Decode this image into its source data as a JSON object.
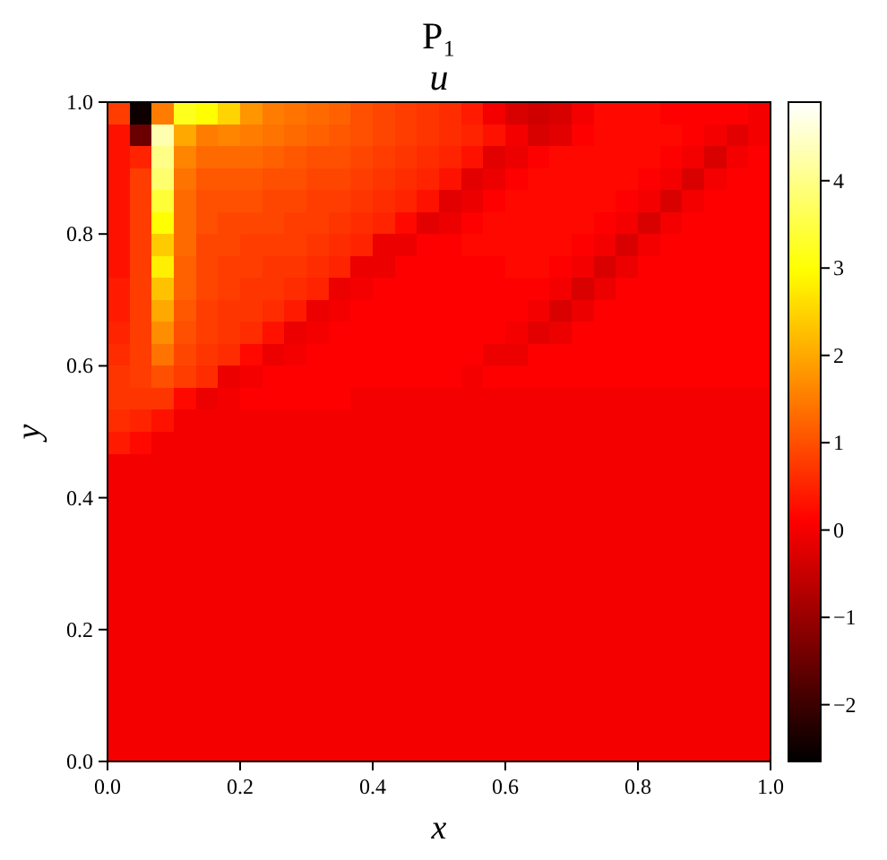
{
  "chart_data": {
    "type": "heatmap",
    "title": "P₁",
    "subtitle": "u",
    "xlabel": "x",
    "ylabel": "y",
    "xlim": [
      0,
      1
    ],
    "ylim": [
      0,
      1
    ],
    "xticks": [
      {
        "value": 0,
        "label": "0.0"
      },
      0.2,
      0.4,
      0.6,
      0.8,
      {
        "value": 1,
        "label": "1.0"
      }
    ],
    "yticks": [
      {
        "value": 0,
        "label": "0.0"
      },
      0.2,
      0.4,
      0.6,
      0.8,
      {
        "value": 1,
        "label": "1.0"
      }
    ],
    "clim": [
      -2.65,
      4.9
    ],
    "cticks": [
      {
        "value": -2,
        "label": "−2"
      },
      {
        "value": -1,
        "label": "−1"
      },
      0,
      1,
      2,
      3,
      4
    ],
    "cells": [
      [
        0.8,
        -2.5,
        1.5,
        3.2,
        3.0,
        2.5,
        1.8,
        1.5,
        1.4,
        1.3,
        1.2,
        1.0,
        0.9,
        0.8,
        0.7,
        0.6,
        0.4,
        0.0,
        -0.3,
        -0.4,
        -0.3,
        0.0,
        0.2,
        0.2,
        0.2,
        0.1,
        0.1,
        0.1,
        0.1,
        0.0
      ],
      [
        0.3,
        -1.5,
        4.3,
        2.0,
        1.5,
        1.6,
        1.5,
        1.4,
        1.3,
        1.2,
        1.1,
        1.0,
        0.9,
        0.8,
        0.7,
        0.6,
        0.5,
        0.3,
        0.0,
        -0.3,
        -0.2,
        0.1,
        0.2,
        0.2,
        0.2,
        0.2,
        0.1,
        0.0,
        -0.2,
        0.0
      ],
      [
        0.3,
        0.5,
        4.0,
        1.6,
        1.3,
        1.3,
        1.3,
        1.2,
        1.1,
        1.0,
        1.0,
        0.9,
        0.8,
        0.7,
        0.6,
        0.5,
        0.3,
        -0.2,
        -0.1,
        0.1,
        0.2,
        0.2,
        0.2,
        0.2,
        0.2,
        0.1,
        0.0,
        -0.3,
        0.0,
        0.1
      ],
      [
        0.3,
        0.8,
        3.8,
        1.4,
        1.1,
        1.1,
        1.1,
        1.0,
        1.0,
        0.9,
        0.9,
        0.8,
        0.7,
        0.6,
        0.5,
        0.3,
        -0.2,
        -0.1,
        0.1,
        0.2,
        0.2,
        0.2,
        0.2,
        0.2,
        0.1,
        0.0,
        -0.3,
        0.0,
        0.1,
        0.1
      ],
      [
        0.3,
        0.8,
        3.4,
        1.3,
        1.0,
        1.0,
        1.0,
        0.9,
        0.9,
        0.8,
        0.8,
        0.7,
        0.6,
        0.5,
        0.3,
        -0.2,
        -0.1,
        0.1,
        0.2,
        0.2,
        0.2,
        0.2,
        0.2,
        0.1,
        0.0,
        -0.3,
        0.0,
        0.1,
        0.1,
        0.1
      ],
      [
        0.3,
        0.8,
        3.0,
        1.3,
        1.0,
        0.9,
        0.9,
        0.9,
        0.8,
        0.8,
        0.7,
        0.6,
        0.5,
        0.2,
        -0.2,
        -0.1,
        0.1,
        0.2,
        0.2,
        0.2,
        0.2,
        0.2,
        0.1,
        0.0,
        -0.3,
        0.0,
        0.1,
        0.1,
        0.1,
        0.1
      ],
      [
        0.3,
        0.8,
        2.4,
        1.3,
        0.9,
        0.9,
        0.8,
        0.8,
        0.8,
        0.7,
        0.6,
        0.5,
        -0.1,
        -0.1,
        0.1,
        0.1,
        0.2,
        0.2,
        0.2,
        0.2,
        0.2,
        0.1,
        0.0,
        -0.3,
        0.0,
        0.1,
        0.1,
        0.1,
        0.1,
        0.1
      ],
      [
        0.3,
        0.8,
        2.8,
        1.2,
        0.9,
        0.8,
        0.8,
        0.7,
        0.7,
        0.6,
        0.5,
        -0.1,
        -0.1,
        0.1,
        0.1,
        0.1,
        0.1,
        0.1,
        0.2,
        0.2,
        0.1,
        0.0,
        -0.3,
        -0.1,
        0.1,
        0.1,
        0.1,
        0.1,
        0.1,
        0.1
      ],
      [
        0.4,
        0.8,
        2.3,
        1.2,
        0.9,
        0.8,
        0.7,
        0.7,
        0.6,
        0.5,
        -0.1,
        0.0,
        0.1,
        0.1,
        0.1,
        0.1,
        0.1,
        0.1,
        0.1,
        0.1,
        0.0,
        -0.3,
        -0.1,
        0.1,
        0.1,
        0.1,
        0.1,
        0.1,
        0.1,
        0.1
      ],
      [
        0.4,
        0.8,
        2.0,
        1.1,
        0.8,
        0.7,
        0.7,
        0.6,
        0.4,
        -0.1,
        0.0,
        0.1,
        0.1,
        0.1,
        0.1,
        0.1,
        0.1,
        0.1,
        0.1,
        0.0,
        -0.3,
        -0.1,
        0.1,
        0.1,
        0.1,
        0.1,
        0.1,
        0.1,
        0.1,
        0.1
      ],
      [
        0.5,
        0.8,
        1.7,
        1.0,
        0.8,
        0.7,
        0.6,
        0.3,
        -0.1,
        0.0,
        0.1,
        0.1,
        0.1,
        0.1,
        0.1,
        0.1,
        0.1,
        0.1,
        0.0,
        -0.2,
        -0.1,
        0.1,
        0.1,
        0.1,
        0.1,
        0.1,
        0.1,
        0.1,
        0.1,
        0.1
      ],
      [
        0.6,
        0.8,
        1.4,
        0.9,
        0.7,
        0.6,
        0.2,
        -0.1,
        0.0,
        0.1,
        0.1,
        0.1,
        0.1,
        0.1,
        0.1,
        0.1,
        0.1,
        -0.1,
        -0.1,
        0.1,
        0.1,
        0.1,
        0.1,
        0.1,
        0.1,
        0.1,
        0.1,
        0.1,
        0.1,
        0.1
      ],
      [
        0.7,
        0.8,
        1.0,
        0.8,
        0.6,
        -0.1,
        0.0,
        0.1,
        0.1,
        0.1,
        0.1,
        0.1,
        0.1,
        0.1,
        0.1,
        0.1,
        0.0,
        0.1,
        0.1,
        0.1,
        0.1,
        0.1,
        0.1,
        0.1,
        0.1,
        0.1,
        0.1,
        0.1,
        0.1,
        0.1
      ],
      [
        0.7,
        0.7,
        0.7,
        0.2,
        -0.1,
        0.0,
        0.1,
        0.1,
        0.1,
        0.1,
        0.1,
        0,
        0,
        0,
        0,
        0,
        0,
        0,
        0,
        0,
        0,
        0,
        0,
        0,
        0,
        0,
        0,
        0,
        0,
        0
      ],
      [
        0.6,
        0.5,
        0.3,
        0,
        0,
        0,
        0,
        0,
        0,
        0,
        0,
        0,
        0,
        0,
        0,
        0,
        0,
        0,
        0,
        0,
        0,
        0,
        0,
        0,
        0,
        0,
        0,
        0,
        0,
        0
      ],
      [
        0.4,
        0.2,
        0,
        0,
        0,
        0,
        0,
        0,
        0,
        0,
        0,
        0,
        0,
        0,
        0,
        0,
        0,
        0,
        0,
        0,
        0,
        0,
        0,
        0,
        0,
        0,
        0,
        0,
        0,
        0
      ],
      [
        0,
        0,
        0,
        0,
        0,
        0,
        0,
        0,
        0,
        0,
        0,
        0,
        0,
        0,
        0,
        0,
        0,
        0,
        0,
        0,
        0,
        0,
        0,
        0,
        0,
        0,
        0,
        0,
        0,
        0
      ],
      [
        0,
        0,
        0,
        0,
        0,
        0,
        0,
        0,
        0,
        0,
        0,
        0,
        0,
        0,
        0,
        0,
        0,
        0,
        0,
        0,
        0,
        0,
        0,
        0,
        0,
        0,
        0,
        0,
        0,
        0
      ],
      [
        0,
        0,
        0,
        0,
        0,
        0,
        0,
        0,
        0,
        0,
        0,
        0,
        0,
        0,
        0,
        0,
        0,
        0,
        0,
        0,
        0,
        0,
        0,
        0,
        0,
        0,
        0,
        0,
        0,
        0
      ],
      [
        0,
        0,
        0,
        0,
        0,
        0,
        0,
        0,
        0,
        0,
        0,
        0,
        0,
        0,
        0,
        0,
        0,
        0,
        0,
        0,
        0,
        0,
        0,
        0,
        0,
        0,
        0,
        0,
        0,
        0
      ],
      [
        0,
        0,
        0,
        0,
        0,
        0,
        0,
        0,
        0,
        0,
        0,
        0,
        0,
        0,
        0,
        0,
        0,
        0,
        0,
        0,
        0,
        0,
        0,
        0,
        0,
        0,
        0,
        0,
        0,
        0
      ],
      [
        0,
        0,
        0,
        0,
        0,
        0,
        0,
        0,
        0,
        0,
        0,
        0,
        0,
        0,
        0,
        0,
        0,
        0,
        0,
        0,
        0,
        0,
        0,
        0,
        0,
        0,
        0,
        0,
        0,
        0
      ],
      [
        0,
        0,
        0,
        0,
        0,
        0,
        0,
        0,
        0,
        0,
        0,
        0,
        0,
        0,
        0,
        0,
        0,
        0,
        0,
        0,
        0,
        0,
        0,
        0,
        0,
        0,
        0,
        0,
        0,
        0
      ],
      [
        0,
        0,
        0,
        0,
        0,
        0,
        0,
        0,
        0,
        0,
        0,
        0,
        0,
        0,
        0,
        0,
        0,
        0,
        0,
        0,
        0,
        0,
        0,
        0,
        0,
        0,
        0,
        0,
        0,
        0
      ],
      [
        0,
        0,
        0,
        0,
        0,
        0,
        0,
        0,
        0,
        0,
        0,
        0,
        0,
        0,
        0,
        0,
        0,
        0,
        0,
        0,
        0,
        0,
        0,
        0,
        0,
        0,
        0,
        0,
        0,
        0
      ],
      [
        0,
        0,
        0,
        0,
        0,
        0,
        0,
        0,
        0,
        0,
        0,
        0,
        0,
        0,
        0,
        0,
        0,
        0,
        0,
        0,
        0,
        0,
        0,
        0,
        0,
        0,
        0,
        0,
        0,
        0
      ],
      [
        0,
        0,
        0,
        0,
        0,
        0,
        0,
        0,
        0,
        0,
        0,
        0,
        0,
        0,
        0,
        0,
        0,
        0,
        0,
        0,
        0,
        0,
        0,
        0,
        0,
        0,
        0,
        0,
        0,
        0
      ],
      [
        0,
        0,
        0,
        0,
        0,
        0,
        0,
        0,
        0,
        0,
        0,
        0,
        0,
        0,
        0,
        0,
        0,
        0,
        0,
        0,
        0,
        0,
        0,
        0,
        0,
        0,
        0,
        0,
        0,
        0
      ],
      [
        0,
        0,
        0,
        0,
        0,
        0,
        0,
        0,
        0,
        0,
        0,
        0,
        0,
        0,
        0,
        0,
        0,
        0,
        0,
        0,
        0,
        0,
        0,
        0,
        0,
        0,
        0,
        0,
        0,
        0
      ],
      [
        0,
        0,
        0,
        0,
        0,
        0,
        0,
        0,
        0,
        0,
        0,
        0,
        0,
        0,
        0,
        0,
        0,
        0,
        0,
        0,
        0,
        0,
        0,
        0,
        0,
        0,
        0,
        0,
        0,
        0
      ]
    ]
  }
}
